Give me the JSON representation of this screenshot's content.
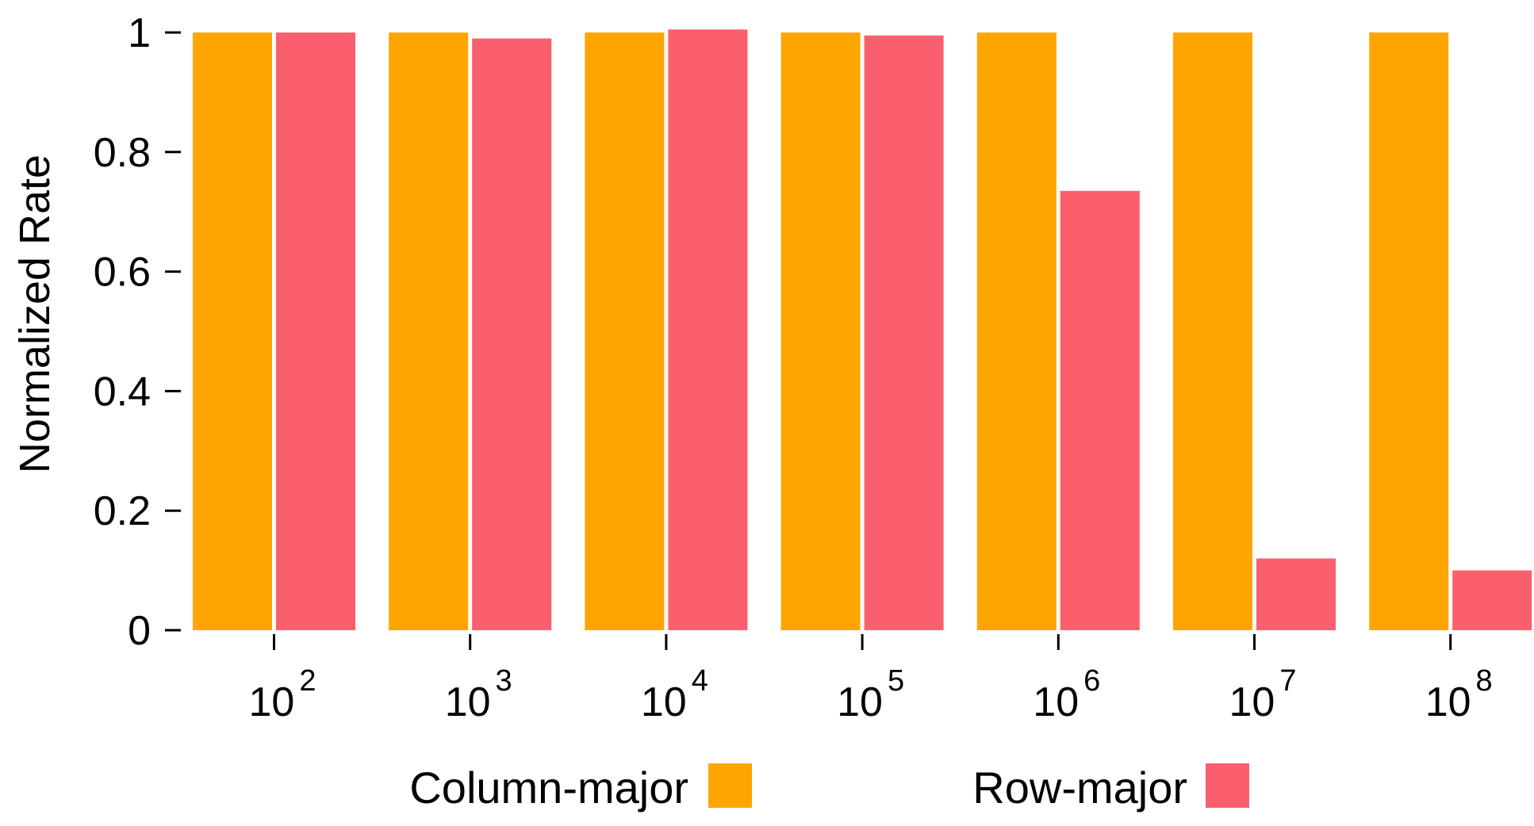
{
  "chart_data": {
    "type": "bar",
    "title": "",
    "xlabel": "",
    "ylabel": "Normalized Rate",
    "ylim": [
      0,
      1
    ],
    "yticks": [
      "0",
      "0.2",
      "0.4",
      "0.6",
      "0.8",
      "1"
    ],
    "categories": [
      {
        "base": "10",
        "exp": "2"
      },
      {
        "base": "10",
        "exp": "3"
      },
      {
        "base": "10",
        "exp": "4"
      },
      {
        "base": "10",
        "exp": "5"
      },
      {
        "base": "10",
        "exp": "6"
      },
      {
        "base": "10",
        "exp": "7"
      },
      {
        "base": "10",
        "exp": "8"
      }
    ],
    "series": [
      {
        "name": "Column-major",
        "color": "#FFA500",
        "values": [
          1,
          1,
          1,
          1,
          1,
          1,
          1
        ]
      },
      {
        "name": "Row-major",
        "color": "#F95F6D",
        "values": [
          1.0,
          0.99,
          1.005,
          0.995,
          0.735,
          0.12,
          0.1
        ]
      }
    ],
    "legend": "bottom-center",
    "grid": false
  }
}
